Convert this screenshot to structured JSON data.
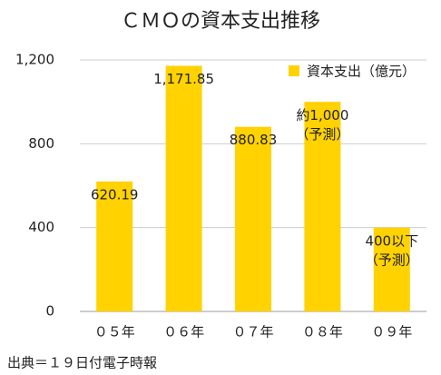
{
  "chart_data": {
    "type": "bar",
    "title": "ＣＭＯの資本支出推移",
    "categories": [
      "０５年",
      "０６年",
      "０７年",
      "０８年",
      "０９年"
    ],
    "series": [
      {
        "name": "資本支出（億元）",
        "color": "#ffd200",
        "values": [
          620.19,
          1171.85,
          880.83,
          1000,
          400
        ],
        "value_labels": [
          "620.19",
          "1,171.85",
          "880.83",
          "約1,000\n（予測）",
          "400以下\n（予測）"
        ]
      }
    ],
    "ylim": [
      0,
      1200
    ],
    "yticks": [
      0,
      400,
      800,
      {
        "value": 1200,
        "label": "1,200"
      }
    ],
    "grid": true,
    "legend": "top-right",
    "source": "出典＝１９日付電子時報"
  }
}
